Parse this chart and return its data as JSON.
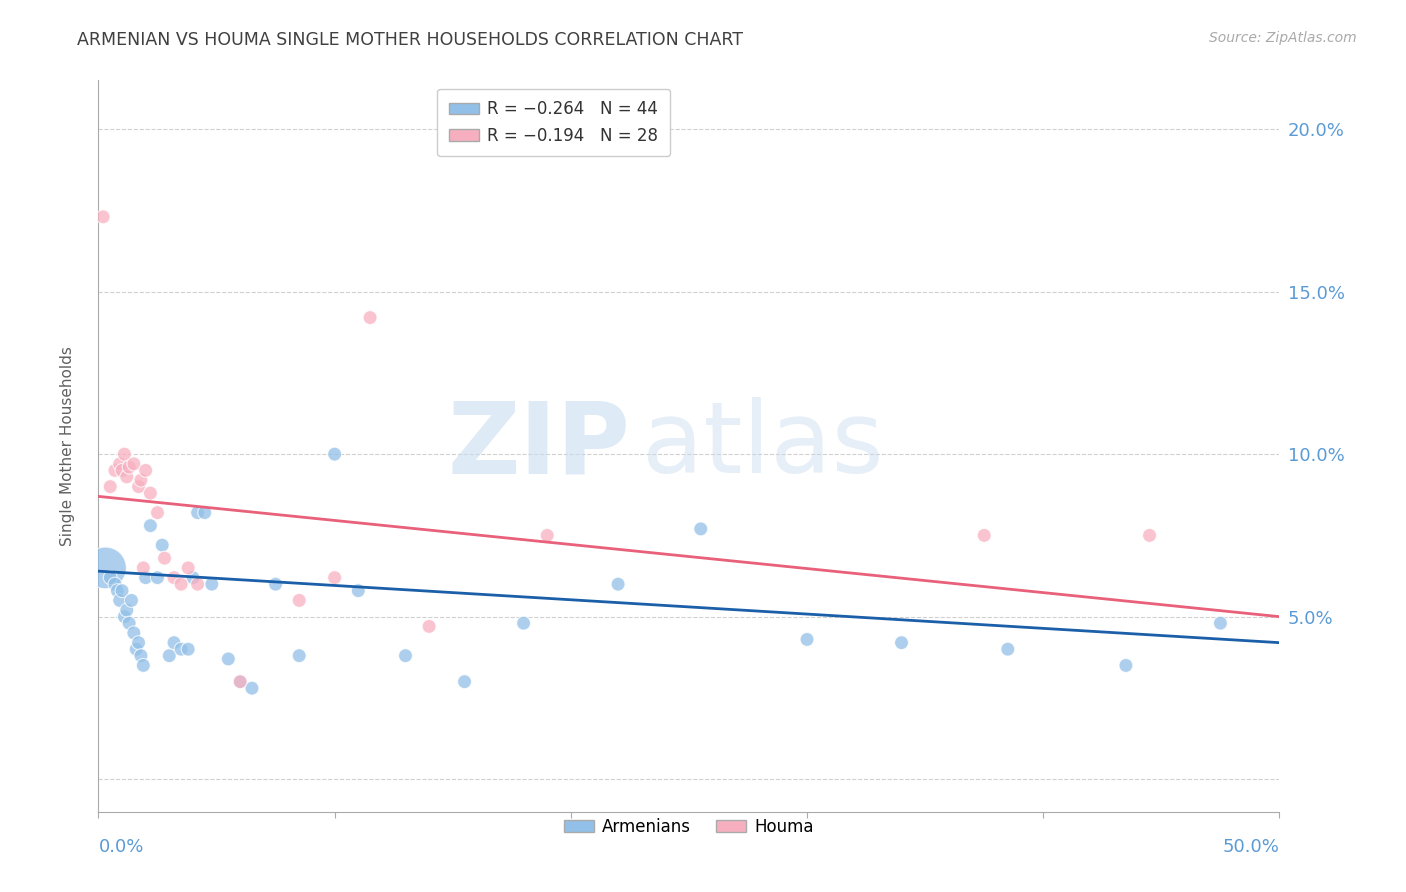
{
  "title": "ARMENIAN VS HOUMA SINGLE MOTHER HOUSEHOLDS CORRELATION CHART",
  "source": "Source: ZipAtlas.com",
  "ylabel": "Single Mother Households",
  "watermark_zip": "ZIP",
  "watermark_atlas": "atlas",
  "xlim": [
    0.0,
    0.5
  ],
  "ylim": [
    -0.01,
    0.215
  ],
  "ytick_vals": [
    0.0,
    0.05,
    0.1,
    0.15,
    0.2
  ],
  "ytick_labels_right": [
    "",
    "5.0%",
    "10.0%",
    "15.0%",
    "20.0%"
  ],
  "xtick_vals": [
    0.0,
    0.1,
    0.2,
    0.3,
    0.4,
    0.5
  ],
  "armenian_color": "#92c0e8",
  "houma_color": "#f7afc0",
  "trend_armenian_color": "#1a5fa8",
  "trend_houma_color": "#e8607a",
  "title_color": "#404040",
  "axis_label_color": "#5b9bd5",
  "grid_color": "#d0d0d0",
  "background_color": "#ffffff",
  "armenian_x": [
    0.003,
    0.005,
    0.007,
    0.008,
    0.009,
    0.01,
    0.011,
    0.012,
    0.013,
    0.014,
    0.015,
    0.016,
    0.017,
    0.018,
    0.019,
    0.02,
    0.022,
    0.025,
    0.027,
    0.03,
    0.032,
    0.035,
    0.038,
    0.04,
    0.042,
    0.045,
    0.048,
    0.055,
    0.06,
    0.065,
    0.075,
    0.085,
    0.1,
    0.11,
    0.13,
    0.155,
    0.18,
    0.22,
    0.255,
    0.3,
    0.34,
    0.385,
    0.435,
    0.475
  ],
  "armenian_y": [
    0.065,
    0.062,
    0.06,
    0.058,
    0.055,
    0.058,
    0.05,
    0.052,
    0.048,
    0.055,
    0.045,
    0.04,
    0.042,
    0.038,
    0.035,
    0.062,
    0.078,
    0.062,
    0.072,
    0.038,
    0.042,
    0.04,
    0.04,
    0.062,
    0.082,
    0.082,
    0.06,
    0.037,
    0.03,
    0.028,
    0.06,
    0.038,
    0.1,
    0.058,
    0.038,
    0.03,
    0.048,
    0.06,
    0.077,
    0.043,
    0.042,
    0.04,
    0.035,
    0.048
  ],
  "armenian_sizes": [
    900,
    100,
    100,
    100,
    100,
    100,
    100,
    100,
    100,
    100,
    100,
    100,
    100,
    100,
    100,
    100,
    100,
    100,
    100,
    100,
    100,
    100,
    100,
    100,
    100,
    100,
    100,
    100,
    100,
    100,
    100,
    100,
    100,
    100,
    100,
    100,
    100,
    100,
    100,
    100,
    100,
    100,
    100,
    100
  ],
  "houma_x": [
    0.002,
    0.005,
    0.007,
    0.009,
    0.01,
    0.011,
    0.012,
    0.013,
    0.015,
    0.017,
    0.018,
    0.019,
    0.02,
    0.022,
    0.025,
    0.028,
    0.032,
    0.035,
    0.038,
    0.042,
    0.06,
    0.085,
    0.1,
    0.115,
    0.14,
    0.19,
    0.375,
    0.445
  ],
  "houma_y": [
    0.173,
    0.09,
    0.095,
    0.097,
    0.095,
    0.1,
    0.093,
    0.096,
    0.097,
    0.09,
    0.092,
    0.065,
    0.095,
    0.088,
    0.082,
    0.068,
    0.062,
    0.06,
    0.065,
    0.06,
    0.03,
    0.055,
    0.062,
    0.142,
    0.047,
    0.075,
    0.075,
    0.075
  ],
  "houma_sizes": [
    100,
    100,
    100,
    100,
    100,
    100,
    100,
    100,
    100,
    100,
    100,
    100,
    100,
    100,
    100,
    100,
    100,
    100,
    100,
    100,
    100,
    100,
    100,
    100,
    100,
    100,
    100,
    100
  ],
  "trend_arm_x0": 0.0,
  "trend_arm_y0": 0.064,
  "trend_arm_x1": 0.5,
  "trend_arm_y1": 0.042,
  "trend_hou_x0": 0.0,
  "trend_hou_y0": 0.087,
  "trend_hou_x1": 0.5,
  "trend_hou_y1": 0.05
}
